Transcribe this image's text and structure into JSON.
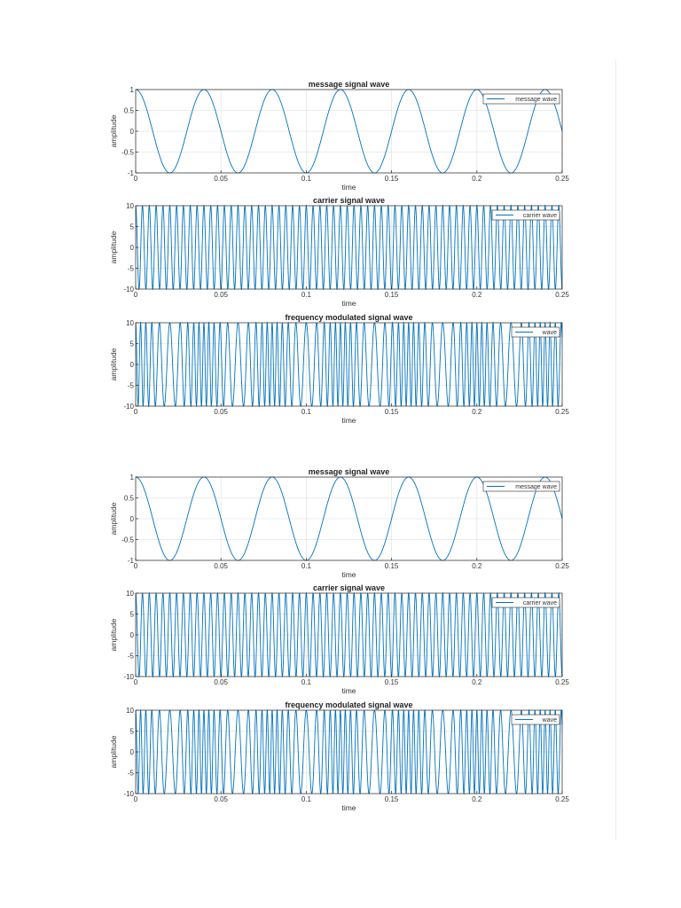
{
  "chart_data": [
    {
      "type": "line",
      "title": "message signal wave",
      "xlabel": "time",
      "ylabel": "amplitude",
      "xlim": [
        0,
        0.25
      ],
      "ylim": [
        -1,
        1
      ],
      "xticks": [
        0,
        0.05,
        0.1,
        0.15,
        0.2,
        0.25
      ],
      "xtick_labels": [
        "0",
        "0.05",
        "0.1",
        "0.15",
        "0.2",
        "0.25"
      ],
      "yticks": [
        1,
        0.5,
        0,
        -0.5,
        -1
      ],
      "ytick_labels": [
        "1",
        "0.5",
        "0",
        "-0.5",
        "-1"
      ],
      "grid": true,
      "legend_position": "top-right",
      "series": [
        {
          "name": "message wave",
          "kind": "cosine",
          "amplitude": 1,
          "frequency_hz": 25
        }
      ],
      "color": "#0072bd"
    },
    {
      "type": "line",
      "title": "carrier signal wave",
      "xlabel": "time",
      "ylabel": "amplitude",
      "xlim": [
        0,
        0.25
      ],
      "ylim": [
        -10,
        10
      ],
      "xticks": [
        0,
        0.05,
        0.1,
        0.15,
        0.2,
        0.25
      ],
      "xtick_labels": [
        "0",
        "0.05",
        "0.1",
        "0.15",
        "0.2",
        "0.25"
      ],
      "yticks": [
        10,
        5,
        0,
        -5,
        -10
      ],
      "ytick_labels": [
        "10",
        "5",
        "0",
        "-5",
        "-10"
      ],
      "grid": true,
      "legend_position": "top-right",
      "series": [
        {
          "name": "carrier wave",
          "kind": "cosine",
          "amplitude": 10,
          "frequency_hz": 250
        }
      ],
      "color": "#0072bd"
    },
    {
      "type": "line",
      "title": "frequency modulated signal wave",
      "xlabel": "time",
      "ylabel": "amplitude",
      "xlim": [
        0,
        0.25
      ],
      "ylim": [
        -10,
        10
      ],
      "xticks": [
        0,
        0.05,
        0.1,
        0.15,
        0.2,
        0.25
      ],
      "xtick_labels": [
        "0",
        "0.05",
        "0.1",
        "0.15",
        "0.2",
        "0.25"
      ],
      "yticks": [
        10,
        5,
        0,
        -5,
        -10
      ],
      "ytick_labels": [
        "10",
        "5",
        "0",
        "-5",
        "-10"
      ],
      "grid": true,
      "legend_position": "top-right",
      "series": [
        {
          "name": "wave",
          "kind": "fm",
          "amplitude": 10,
          "carrier_hz": 250,
          "message_hz": 25,
          "deviation_hz": 100
        }
      ],
      "color": "#0072bd"
    },
    {
      "type": "line",
      "title": "message signal wave",
      "xlabel": "time",
      "ylabel": "amplitude",
      "xlim": [
        0,
        0.25
      ],
      "ylim": [
        -1,
        1
      ],
      "xticks": [
        0,
        0.05,
        0.1,
        0.15,
        0.2,
        0.25
      ],
      "xtick_labels": [
        "0",
        "0.05",
        "0.1",
        "0.15",
        "0.2",
        "0.25"
      ],
      "yticks": [
        1,
        0.5,
        0,
        -0.5,
        -1
      ],
      "ytick_labels": [
        "1",
        "0.5",
        "0",
        "-0.5",
        "-1"
      ],
      "grid": true,
      "legend_position": "top-right",
      "series": [
        {
          "name": "message wave",
          "kind": "cosine",
          "amplitude": 1,
          "frequency_hz": 25
        }
      ],
      "color": "#0072bd"
    },
    {
      "type": "line",
      "title": "carrier signal wave",
      "xlabel": "time",
      "ylabel": "amplitude",
      "xlim": [
        0,
        0.25
      ],
      "ylim": [
        -10,
        10
      ],
      "xticks": [
        0,
        0.05,
        0.1,
        0.15,
        0.2,
        0.25
      ],
      "xtick_labels": [
        "0",
        "0.05",
        "0.1",
        "0.15",
        "0.2",
        "0.25"
      ],
      "yticks": [
        10,
        5,
        0,
        -5,
        -10
      ],
      "ytick_labels": [
        "10",
        "5",
        "0",
        "-5",
        "-10"
      ],
      "grid": true,
      "legend_position": "top-right",
      "series": [
        {
          "name": "carrier wave",
          "kind": "cosine",
          "amplitude": 10,
          "frequency_hz": 250
        }
      ],
      "color": "#0072bd"
    },
    {
      "type": "line",
      "title": "frequency modulated signal wave",
      "xlabel": "time",
      "ylabel": "amplitude",
      "xlim": [
        0,
        0.25
      ],
      "ylim": [
        -10,
        10
      ],
      "xticks": [
        0,
        0.05,
        0.1,
        0.15,
        0.2,
        0.25
      ],
      "xtick_labels": [
        "0",
        "0.05",
        "0.1",
        "0.15",
        "0.2",
        "0.25"
      ],
      "yticks": [
        10,
        5,
        0,
        -5,
        -10
      ],
      "ytick_labels": [
        "10",
        "5",
        "0",
        "-5",
        "-10"
      ],
      "grid": true,
      "legend_position": "top-right",
      "series": [
        {
          "name": "wave",
          "kind": "fm",
          "amplitude": 10,
          "carrier_hz": 250,
          "message_hz": 25,
          "deviation_hz": 100
        }
      ],
      "color": "#0072bd"
    }
  ]
}
